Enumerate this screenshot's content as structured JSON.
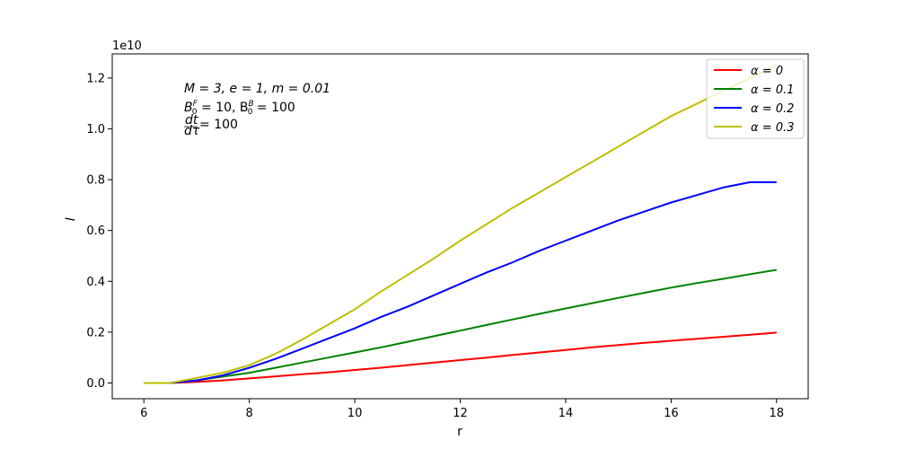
{
  "chart_data": {
    "type": "line",
    "xlabel": "r",
    "ylabel": "I",
    "xlim": [
      5.4,
      18.6
    ],
    "ylim": [
      -0.062,
      1.295
    ],
    "offset_text": "1e10",
    "x_ticks": [
      6,
      8,
      10,
      12,
      14,
      16,
      18
    ],
    "y_ticks": [
      0.0,
      0.2,
      0.4,
      0.6,
      0.8,
      1.0,
      1.2
    ],
    "grid": false,
    "legend_position": "top-right",
    "annotation": {
      "line1": "M = 3,  e = 1,  m = 0.01",
      "line2_b_f_label": "F",
      "line2_b_f_value": "10",
      "line2_b_b_label": "B",
      "line2_b_b_value": "100",
      "line3_num": "dt",
      "line3_den": "dτ",
      "line3_value": "100"
    },
    "x": [
      6,
      6.5,
      7,
      7.5,
      8,
      8.5,
      9,
      9.5,
      10,
      10.5,
      11,
      11.5,
      12,
      12.5,
      13,
      13.5,
      14,
      14.5,
      15,
      15.5,
      16,
      16.5,
      17,
      17.5,
      18
    ],
    "series": [
      {
        "name": "α = 0",
        "color": "#ff0000",
        "values": [
          0.0,
          0.0,
          0.004,
          0.01,
          0.018,
          0.026,
          0.034,
          0.042,
          0.051,
          0.06,
          0.07,
          0.08,
          0.09,
          0.1,
          0.11,
          0.12,
          0.13,
          0.14,
          0.149,
          0.158,
          0.166,
          0.174,
          0.182,
          0.19,
          0.198
        ]
      },
      {
        "name": "α = 0.1",
        "color": "#008000",
        "values": [
          0.0,
          0.0,
          0.01,
          0.025,
          0.04,
          0.06,
          0.08,
          0.1,
          0.12,
          0.14,
          0.162,
          0.184,
          0.206,
          0.228,
          0.25,
          0.272,
          0.293,
          0.314,
          0.335,
          0.355,
          0.375,
          0.393,
          0.41,
          0.428,
          0.445
        ]
      },
      {
        "name": "α = 0.2",
        "color": "#0000ff",
        "values": [
          0.0,
          0.0,
          0.01,
          0.03,
          0.06,
          0.095,
          0.135,
          0.175,
          0.215,
          0.26,
          0.3,
          0.345,
          0.39,
          0.435,
          0.475,
          0.52,
          0.56,
          0.6,
          0.64,
          0.675,
          0.71,
          0.74,
          0.77,
          0.79,
          0.79
        ]
      },
      {
        "name": "α = 0.3",
        "color": "#bfbf00",
        "values": [
          0.0,
          0.0,
          0.02,
          0.04,
          0.07,
          0.115,
          0.17,
          0.23,
          0.29,
          0.36,
          0.425,
          0.49,
          0.56,
          0.625,
          0.69,
          0.75,
          0.81,
          0.87,
          0.93,
          0.99,
          1.05,
          1.1,
          1.15,
          1.2,
          1.25
        ]
      }
    ]
  }
}
